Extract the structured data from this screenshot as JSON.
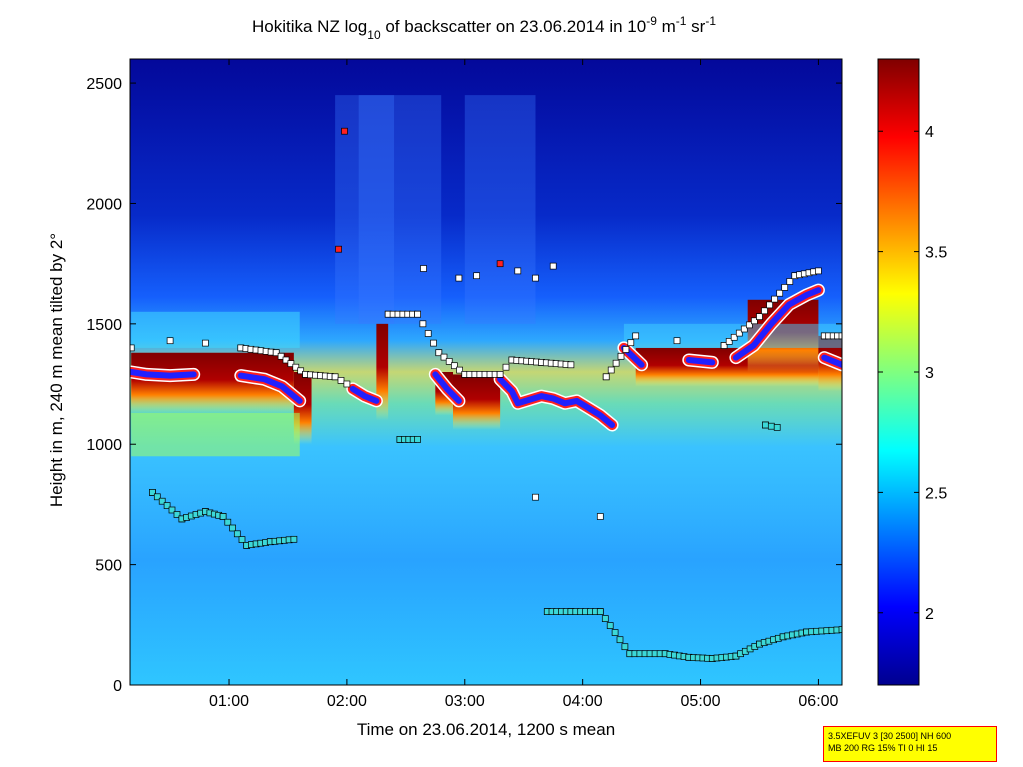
{
  "chart_data": {
    "type": "heatmap",
    "title": {
      "prefix": "Hokitika NZ log",
      "log_base": "10",
      "middle": " of backscatter on 23.06.2014 in 10",
      "exp1": "-9",
      "unit_m": " m",
      "exp2": "-1",
      "unit_sr": " sr",
      "exp3": "-1"
    },
    "xlabel": "Time on 23.06.2014, 1200 s mean",
    "ylabel": "Height in m, 240 m mean tilted by 2°",
    "xlim_hours": [
      0.16,
      6.2
    ],
    "ylim": [
      0,
      2600
    ],
    "xticks": [
      {
        "t": 1,
        "label": "01:00"
      },
      {
        "t": 2,
        "label": "02:00"
      },
      {
        "t": 3,
        "label": "03:00"
      },
      {
        "t": 4,
        "label": "04:00"
      },
      {
        "t": 5,
        "label": "05:00"
      },
      {
        "t": 6,
        "label": "06:00"
      }
    ],
    "yticks": [
      {
        "v": 0,
        "label": "0"
      },
      {
        "v": 500,
        "label": "500"
      },
      {
        "v": 1000,
        "label": "1000"
      },
      {
        "v": 1500,
        "label": "1500"
      },
      {
        "v": 2000,
        "label": "2000"
      },
      {
        "v": 2500,
        "label": "2500"
      }
    ],
    "colorbar": {
      "range": [
        1.7,
        4.3
      ],
      "ticks": [
        {
          "v": 2,
          "label": "2"
        },
        {
          "v": 2.5,
          "label": "2.5"
        },
        {
          "v": 3,
          "label": "3"
        },
        {
          "v": 3.5,
          "label": "3.5"
        },
        {
          "v": 4,
          "label": "4"
        }
      ],
      "colormap": "jet"
    },
    "cloud_base_series": [
      [
        0.17,
        1300
      ],
      [
        0.3,
        1290
      ],
      [
        0.5,
        1285
      ],
      [
        0.7,
        1290
      ],
      [
        0.9,
        1280
      ],
      [
        1.1,
        1285
      ],
      [
        1.3,
        1270
      ],
      [
        1.45,
        1240
      ],
      [
        1.6,
        1180
      ],
      [
        2.05,
        1230
      ],
      [
        2.15,
        1200
      ],
      [
        2.25,
        1180
      ],
      [
        2.3,
        1430
      ],
      [
        2.75,
        1290
      ],
      [
        2.85,
        1230
      ],
      [
        2.95,
        1180
      ],
      [
        3.3,
        1270
      ],
      [
        3.4,
        1220
      ],
      [
        3.45,
        1170
      ],
      [
        3.65,
        1200
      ],
      [
        3.75,
        1190
      ],
      [
        3.85,
        1170
      ],
      [
        3.95,
        1180
      ],
      [
        4.05,
        1150
      ],
      [
        4.15,
        1120
      ],
      [
        4.25,
        1080
      ],
      [
        4.35,
        1400
      ],
      [
        4.5,
        1330
      ],
      [
        4.7,
        1340
      ],
      [
        4.9,
        1350
      ],
      [
        5.1,
        1340
      ],
      [
        5.3,
        1360
      ],
      [
        5.45,
        1410
      ],
      [
        5.6,
        1500
      ],
      [
        5.75,
        1580
      ],
      [
        5.9,
        1620
      ],
      [
        6.0,
        1640
      ],
      [
        6.05,
        1360
      ],
      [
        6.2,
        1330
      ]
    ],
    "layer_series_black": [
      [
        0.17,
        1400
      ],
      [
        0.5,
        1430
      ],
      [
        0.8,
        1420
      ],
      [
        1.1,
        1400
      ],
      [
        1.4,
        1380
      ],
      [
        1.65,
        1290
      ],
      [
        1.9,
        1280
      ],
      [
        2.0,
        1250
      ],
      [
        2.35,
        1540
      ],
      [
        2.6,
        1540
      ],
      [
        2.78,
        1380
      ],
      [
        3.0,
        1290
      ],
      [
        3.3,
        1290
      ],
      [
        3.4,
        1350
      ],
      [
        3.65,
        1340
      ],
      [
        3.9,
        1330
      ],
      [
        4.2,
        1280
      ],
      [
        4.45,
        1450
      ],
      [
        4.8,
        1430
      ],
      [
        5.2,
        1410
      ],
      [
        5.5,
        1530
      ],
      [
        5.8,
        1700
      ],
      [
        6.0,
        1720
      ],
      [
        6.05,
        1450
      ],
      [
        6.2,
        1450
      ]
    ],
    "layer_series_mid": [
      [
        0.35,
        800
      ],
      [
        0.6,
        690
      ],
      [
        0.8,
        720
      ],
      [
        0.95,
        700
      ],
      [
        1.15,
        580
      ],
      [
        1.35,
        595
      ],
      [
        1.55,
        605
      ],
      [
        2.45,
        1020
      ],
      [
        2.6,
        1020
      ],
      [
        3.7,
        305
      ],
      [
        3.9,
        305
      ],
      [
        4.15,
        305
      ],
      [
        4.4,
        130
      ],
      [
        4.7,
        130
      ],
      [
        4.9,
        115
      ],
      [
        5.1,
        110
      ],
      [
        5.3,
        120
      ],
      [
        5.5,
        170
      ],
      [
        5.7,
        200
      ],
      [
        5.9,
        220
      ],
      [
        6.2,
        230
      ],
      [
        5.55,
        1080
      ],
      [
        5.65,
        1070
      ]
    ],
    "high_points": [
      [
        1.93,
        1810
      ],
      [
        2.65,
        1730
      ],
      [
        2.95,
        1690
      ],
      [
        3.1,
        1700
      ],
      [
        3.3,
        1750
      ],
      [
        3.45,
        1720
      ],
      [
        3.6,
        1690
      ],
      [
        3.75,
        1740
      ],
      [
        1.98,
        2300
      ],
      [
        4.15,
        700
      ],
      [
        3.6,
        780
      ]
    ]
  },
  "info_box": {
    "line1": "3.5XEFUV 3 [30 2500] NH 600",
    "line2": "MB 200 RG 15% TI 0 HI 15"
  }
}
